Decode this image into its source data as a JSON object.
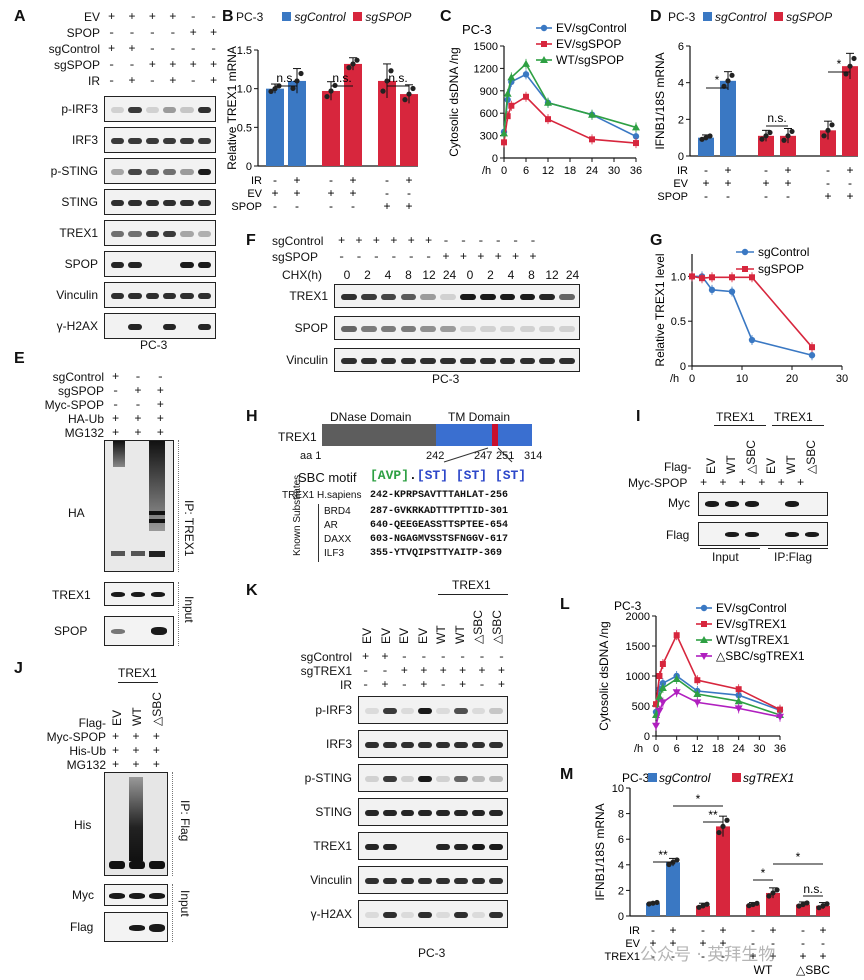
{
  "panels": {
    "A": {
      "letter": "A",
      "rows": [
        "EV",
        "SPOP",
        "sgControl",
        "sgSPOP",
        "IR"
      ],
      "row_signs": [
        "+ + + + - -",
        "- - - - + +",
        "+ + - - - -",
        "- - + + + +",
        "- + - + - +"
      ],
      "blots": [
        "p-IRF3",
        "IRF3",
        "p-STING",
        "STING",
        "TREX1",
        "SPOP",
        "Vinculin",
        "γ-H2AX"
      ],
      "cell": "PC-3"
    },
    "B": {
      "letter": "B",
      "cell": "PC-3",
      "legend": [
        "sgControl",
        "sgSPOP"
      ],
      "sig": [
        "n.s.",
        "n.s.",
        "n.s."
      ],
      "xrows": [
        "IR",
        "EV",
        "SPOP"
      ],
      "xsigns": [
        "- + - + - +",
        "+ + + + - -",
        "- - - - + +"
      ]
    },
    "C": {
      "letter": "C",
      "cell": "PC-3",
      "legend": [
        "EV/sgControl",
        "EV/sgSPOP",
        "WT/sgSPOP"
      ]
    },
    "D": {
      "letter": "D",
      "cell": "PC-3",
      "legend": [
        "sgControl",
        "sgSPOP"
      ],
      "sig": [
        "*",
        "n.s.",
        "*"
      ],
      "xrows": [
        "IR",
        "EV",
        "SPOP"
      ],
      "xsigns": [
        "- + - + - +",
        "+ + + + - -",
        "- - - - + +"
      ]
    },
    "E": {
      "letter": "E",
      "rows": [
        "sgControl",
        "sgSPOP",
        "Myc-SPOP",
        "HA-Ub",
        "MG132"
      ],
      "row_signs": [
        "+ - -",
        "- + +",
        "- - +",
        "+ + +",
        "+ + +"
      ],
      "blots": [
        "HA",
        "TREX1",
        "SPOP"
      ],
      "side": [
        "IP: TREX1",
        "Input"
      ]
    },
    "F": {
      "letter": "F",
      "rows": [
        "sgControl",
        "sgSPOP",
        "CHX(h)"
      ],
      "signs_ctrl": "+ + + + + + - - - - - -",
      "signs_spop": "- - - - - - + + + + + +",
      "chx": [
        "0",
        "2",
        "4",
        "8",
        "12",
        "24",
        "0",
        "2",
        "4",
        "8",
        "12",
        "24"
      ],
      "blots": [
        "TREX1",
        "SPOP",
        "Vinculin"
      ],
      "cell": "PC-3"
    },
    "G": {
      "letter": "G",
      "legend": [
        "sgControl",
        "sgSPOP"
      ]
    },
    "H": {
      "letter": "H",
      "protein": "TREX1",
      "domains": [
        "DNase Domain",
        "TM Domain"
      ],
      "aa": [
        "aa 1",
        "242",
        "247",
        "251",
        "314"
      ],
      "motif_label": "SBC motif",
      "human": {
        "label": "TREX1 H.sapiens",
        "seq": "242-KPRPSAVTTTAHLAT-256"
      },
      "known_label": "Known Substrates",
      "subs": [
        {
          "name": "BRD4",
          "seq": "287-GVKRKADTTTPTTID-301"
        },
        {
          "name": "AR",
          "seq": "640-QEEGEASSTTSPTEE-654"
        },
        {
          "name": "DAXX",
          "seq": "603-NGAGMVSSTSFNGGV-617"
        },
        {
          "name": "ILF3",
          "seq": "355-YTVQIPSTTYAITP-369"
        }
      ]
    },
    "I": {
      "letter": "I",
      "heads": [
        "TREX1",
        "TREX1"
      ],
      "flag": "Flag-",
      "flag_cols": [
        "EV",
        "WT",
        "△SBC",
        "EV",
        "WT",
        "△SBC"
      ],
      "myc_row": "Myc-SPOP",
      "myc_signs": "+ + + + + +",
      "blots": [
        "Myc",
        "Flag"
      ],
      "groups": [
        "Input",
        "IP:Flag"
      ]
    },
    "J": {
      "letter": "J",
      "head": "TREX1",
      "rows": [
        "Flag-",
        "Myc-SPOP",
        "His-Ub",
        "MG132"
      ],
      "cols": [
        "EV",
        "WT",
        "△SBC"
      ],
      "row_signs": [
        "+ + +",
        "+ + +",
        "+ + +"
      ],
      "blots": [
        "His",
        "Myc",
        "Flag"
      ],
      "side": [
        "IP: Flag",
        "Input"
      ]
    },
    "K": {
      "letter": "K",
      "head": "TREX1",
      "cols": [
        "EV",
        "EV",
        "EV",
        "EV",
        "WT",
        "WT",
        "△SBC",
        "△SBC"
      ],
      "rows": [
        "sgControl",
        "sgTREX1",
        "IR"
      ],
      "row_signs": [
        "+ + - - - - - -",
        "- - + + + + + +",
        "- + - + - + - +"
      ],
      "blots": [
        "p-IRF3",
        "IRF3",
        "p-STING",
        "STING",
        "TREX1",
        "Vinculin",
        "γ-H2AX"
      ],
      "cell": "PC-3"
    },
    "L": {
      "letter": "L",
      "cell": "PC-3",
      "legend": [
        "EV/sgControl",
        "EV/sgTREX1",
        "WT/sgTREX1",
        "△SBC/sgTREX1"
      ]
    },
    "M": {
      "letter": "M",
      "cell": "PC-3",
      "legend": [
        "sgControl",
        "sgTREX1"
      ],
      "xrows": [
        "IR",
        "EV",
        "TREX1"
      ],
      "groups": [
        "WT",
        "△SBC"
      ],
      "sig": [
        "**",
        "*",
        "**",
        "*",
        "*",
        "n.s."
      ]
    }
  },
  "watermark": "公众号 · 英拜生物",
  "chart_data": [
    {
      "id": "B",
      "type": "bar",
      "title": "PC-3",
      "ylabel": "Relative TREX1 mRNA",
      "ylim": [
        0,
        1.5
      ],
      "yticks": [
        "0",
        "0.5",
        "1.0",
        "1.5"
      ],
      "series": [
        {
          "name": "sgControl",
          "color": "#3a78c3"
        },
        {
          "name": "sgSPOP",
          "color": "#d7263d"
        }
      ],
      "bars": [
        {
          "series": "sgControl",
          "value": 1.0
        },
        {
          "series": "sgControl",
          "value": 1.1
        },
        {
          "series": "sgSPOP",
          "value": 0.97
        },
        {
          "series": "sgSPOP",
          "value": 1.32
        },
        {
          "series": "sgSPOP",
          "value": 1.1
        },
        {
          "series": "sgSPOP",
          "value": 0.93
        }
      ],
      "errors": [
        0.06,
        0.16,
        0.12,
        0.08,
        0.22,
        0.12
      ]
    },
    {
      "id": "C",
      "type": "line",
      "title": "PC-3",
      "ylabel": "Cytosolic dsDNA /ng",
      "xlabel": "/h",
      "x": [
        0,
        1,
        2,
        6,
        12,
        24,
        36
      ],
      "xticks": [
        "0",
        "6",
        "12",
        "18",
        "24",
        "30",
        "36"
      ],
      "ylim": [
        0,
        1500
      ],
      "yticks": [
        "0",
        "300",
        "600",
        "900",
        "1200",
        "1500"
      ],
      "series": [
        {
          "name": "EV/sgControl",
          "color": "#3a78c3",
          "marker": "circle",
          "values": [
            350,
            780,
            1020,
            1120,
            740,
            580,
            290
          ]
        },
        {
          "name": "EV/sgSPOP",
          "color": "#d7263d",
          "marker": "square",
          "values": [
            210,
            560,
            700,
            820,
            520,
            250,
            200
          ]
        },
        {
          "name": "WT/sgSPOP",
          "color": "#2ea043",
          "marker": "triangle",
          "values": [
            330,
            860,
            1080,
            1260,
            740,
            580,
            410
          ]
        }
      ]
    },
    {
      "id": "D",
      "type": "bar",
      "title": "PC-3",
      "ylabel": "IFNB1/18S mRNA",
      "ylim": [
        0,
        6
      ],
      "yticks": [
        "0",
        "2",
        "4",
        "6"
      ],
      "series": [
        {
          "name": "sgControl",
          "color": "#3a78c3"
        },
        {
          "name": "sgSPOP",
          "color": "#d7263d"
        }
      ],
      "bars": [
        {
          "series": "sgControl",
          "value": 1.0
        },
        {
          "series": "sgControl",
          "value": 4.1
        },
        {
          "series": "sgSPOP",
          "value": 1.1
        },
        {
          "series": "sgSPOP",
          "value": 1.1
        },
        {
          "series": "sgSPOP",
          "value": 1.4
        },
        {
          "series": "sgSPOP",
          "value": 4.9
        }
      ],
      "errors": [
        0.15,
        0.5,
        0.3,
        0.4,
        0.5,
        0.7
      ]
    },
    {
      "id": "G",
      "type": "line",
      "ylabel": "Relative TREX1 level",
      "xlabel": "/h",
      "xlim": [
        0,
        30
      ],
      "xticks": [
        "0",
        "10",
        "20",
        "30"
      ],
      "ylim": [
        0,
        1.25
      ],
      "yticks": [
        "0",
        "0.5",
        "1.0"
      ],
      "series": [
        {
          "name": "sgControl",
          "color": "#3a78c3",
          "marker": "circle",
          "x": [
            0,
            2,
            4,
            8,
            12,
            24
          ],
          "values": [
            1.0,
            1.0,
            0.85,
            0.83,
            0.29,
            0.12
          ]
        },
        {
          "name": "sgSPOP",
          "color": "#d7263d",
          "marker": "square",
          "x": [
            0,
            2,
            4,
            8,
            12,
            24
          ],
          "values": [
            1.0,
            0.98,
            0.99,
            0.99,
            0.99,
            0.21
          ]
        }
      ]
    },
    {
      "id": "L",
      "type": "line",
      "title": "PC-3",
      "ylabel": "Cytosolic dsDNA /ng",
      "xlabel": "/h",
      "x": [
        0,
        1,
        2,
        6,
        12,
        24,
        36
      ],
      "xticks": [
        "0",
        "6",
        "12",
        "18",
        "24",
        "30",
        "36"
      ],
      "ylim": [
        0,
        2000
      ],
      "yticks": [
        "0",
        "500",
        "1000",
        "1500",
        "2000"
      ],
      "series": [
        {
          "name": "EV/sgControl",
          "color": "#3a78c3",
          "marker": "circle",
          "values": [
            400,
            780,
            880,
            1000,
            750,
            680,
            430
          ]
        },
        {
          "name": "EV/sgTREX1",
          "color": "#d7263d",
          "marker": "square",
          "values": [
            530,
            1000,
            1200,
            1680,
            930,
            780,
            440
          ]
        },
        {
          "name": "WT/sgTREX1",
          "color": "#2ea043",
          "marker": "triangle",
          "values": [
            350,
            650,
            800,
            950,
            700,
            580,
            350
          ]
        },
        {
          "name": "△SBC/sgTREX1",
          "color": "#b01fbf",
          "marker": "triangleDown",
          "values": [
            170,
            420,
            560,
            730,
            560,
            460,
            320
          ]
        }
      ]
    },
    {
      "id": "M",
      "type": "bar",
      "title": "PC-3",
      "ylabel": "IFNB1/18S mRNA",
      "ylim": [
        0,
        10
      ],
      "yticks": [
        "0",
        "2",
        "4",
        "6",
        "8",
        "10"
      ],
      "series": [
        {
          "name": "sgControl",
          "color": "#3a78c3"
        },
        {
          "name": "sgTREX1",
          "color": "#d7263d"
        }
      ],
      "bars": [
        {
          "series": "sgControl",
          "value": 1.0
        },
        {
          "series": "sgControl",
          "value": 4.2
        },
        {
          "series": "sgTREX1",
          "value": 0.8
        },
        {
          "series": "sgTREX1",
          "value": 7.0
        },
        {
          "series": "sgTREX1",
          "value": 0.9
        },
        {
          "series": "sgTREX1",
          "value": 1.8
        },
        {
          "series": "sgTREX1",
          "value": 0.9
        },
        {
          "series": "sgTREX1",
          "value": 0.8
        }
      ],
      "errors": [
        0.1,
        0.3,
        0.2,
        0.8,
        0.15,
        0.4,
        0.2,
        0.25
      ]
    }
  ]
}
